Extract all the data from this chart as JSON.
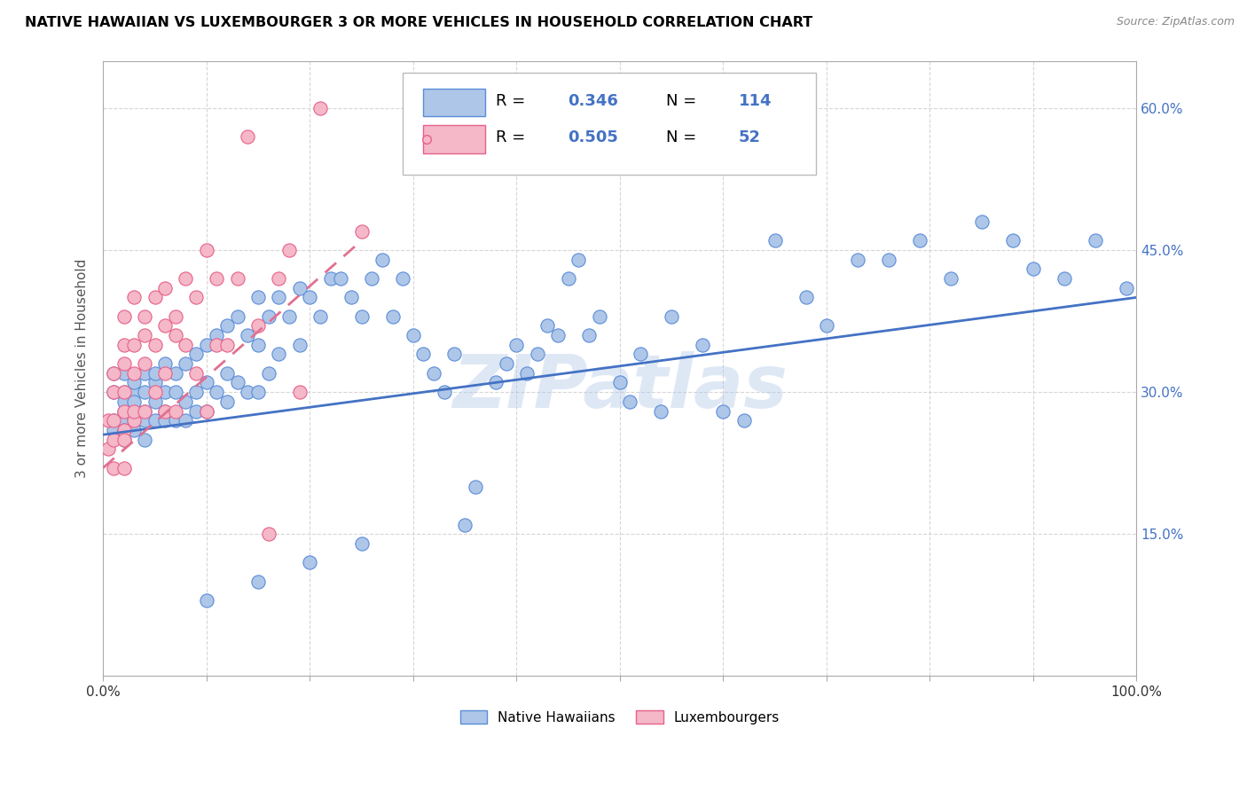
{
  "title": "NATIVE HAWAIIAN VS LUXEMBOURGER 3 OR MORE VEHICLES IN HOUSEHOLD CORRELATION CHART",
  "source": "Source: ZipAtlas.com",
  "ylabel": "3 or more Vehicles in Household",
  "xlim": [
    0,
    1.0
  ],
  "ylim": [
    0.0,
    0.65
  ],
  "R_blue": 0.346,
  "N_blue": 114,
  "R_pink": 0.505,
  "N_pink": 52,
  "legend_labels": [
    "Native Hawaiians",
    "Luxembourgers"
  ],
  "blue_color": "#aec6e8",
  "pink_color": "#f4b8c8",
  "blue_edge_color": "#5b8dd9",
  "pink_edge_color": "#e8608a",
  "blue_line_color": "#4472c4",
  "pink_line_color": "#e07090",
  "watermark": "ZIPatlas",
  "blue_line_x0": 0.0,
  "blue_line_y0": 0.255,
  "blue_line_x1": 1.0,
  "blue_line_y1": 0.4,
  "pink_line_x0": 0.0,
  "pink_line_y0": 0.22,
  "pink_line_x1": 0.25,
  "pink_line_y1": 0.46,
  "blue_scatter_x": [
    0.01,
    0.01,
    0.01,
    0.01,
    0.02,
    0.02,
    0.02,
    0.02,
    0.02,
    0.02,
    0.02,
    0.03,
    0.03,
    0.03,
    0.03,
    0.03,
    0.03,
    0.04,
    0.04,
    0.04,
    0.04,
    0.04,
    0.05,
    0.05,
    0.05,
    0.05,
    0.06,
    0.06,
    0.06,
    0.06,
    0.07,
    0.07,
    0.07,
    0.08,
    0.08,
    0.08,
    0.09,
    0.09,
    0.09,
    0.1,
    0.1,
    0.1,
    0.11,
    0.11,
    0.12,
    0.12,
    0.12,
    0.13,
    0.13,
    0.14,
    0.14,
    0.15,
    0.15,
    0.15,
    0.16,
    0.16,
    0.17,
    0.17,
    0.18,
    0.19,
    0.19,
    0.2,
    0.21,
    0.22,
    0.23,
    0.24,
    0.25,
    0.26,
    0.27,
    0.28,
    0.29,
    0.3,
    0.31,
    0.32,
    0.33,
    0.34,
    0.35,
    0.36,
    0.38,
    0.39,
    0.4,
    0.41,
    0.42,
    0.43,
    0.44,
    0.45,
    0.46,
    0.47,
    0.48,
    0.5,
    0.51,
    0.52,
    0.54,
    0.55,
    0.58,
    0.6,
    0.62,
    0.65,
    0.68,
    0.7,
    0.73,
    0.76,
    0.79,
    0.82,
    0.85,
    0.88,
    0.9,
    0.93,
    0.96,
    0.99,
    0.1,
    0.15,
    0.2,
    0.25
  ],
  "blue_scatter_y": [
    0.27,
    0.3,
    0.32,
    0.26,
    0.28,
    0.3,
    0.25,
    0.27,
    0.29,
    0.32,
    0.26,
    0.28,
    0.3,
    0.27,
    0.31,
    0.26,
    0.29,
    0.3,
    0.28,
    0.32,
    0.27,
    0.25,
    0.31,
    0.29,
    0.27,
    0.32,
    0.3,
    0.28,
    0.33,
    0.27,
    0.32,
    0.3,
    0.27,
    0.33,
    0.29,
    0.27,
    0.34,
    0.3,
    0.28,
    0.35,
    0.31,
    0.28,
    0.36,
    0.3,
    0.37,
    0.32,
    0.29,
    0.38,
    0.31,
    0.36,
    0.3,
    0.4,
    0.35,
    0.3,
    0.38,
    0.32,
    0.4,
    0.34,
    0.38,
    0.41,
    0.35,
    0.4,
    0.38,
    0.42,
    0.42,
    0.4,
    0.38,
    0.42,
    0.44,
    0.38,
    0.42,
    0.36,
    0.34,
    0.32,
    0.3,
    0.34,
    0.16,
    0.2,
    0.31,
    0.33,
    0.35,
    0.32,
    0.34,
    0.37,
    0.36,
    0.42,
    0.44,
    0.36,
    0.38,
    0.31,
    0.29,
    0.34,
    0.28,
    0.38,
    0.35,
    0.28,
    0.27,
    0.46,
    0.4,
    0.37,
    0.44,
    0.44,
    0.46,
    0.42,
    0.48,
    0.46,
    0.43,
    0.42,
    0.46,
    0.41,
    0.08,
    0.1,
    0.12,
    0.14
  ],
  "pink_scatter_x": [
    0.005,
    0.005,
    0.01,
    0.01,
    0.01,
    0.01,
    0.01,
    0.02,
    0.02,
    0.02,
    0.02,
    0.02,
    0.02,
    0.02,
    0.02,
    0.03,
    0.03,
    0.03,
    0.03,
    0.03,
    0.04,
    0.04,
    0.04,
    0.04,
    0.05,
    0.05,
    0.05,
    0.06,
    0.06,
    0.06,
    0.06,
    0.07,
    0.07,
    0.07,
    0.08,
    0.08,
    0.09,
    0.09,
    0.1,
    0.1,
    0.11,
    0.11,
    0.12,
    0.13,
    0.14,
    0.15,
    0.16,
    0.17,
    0.18,
    0.19,
    0.21,
    0.25
  ],
  "pink_scatter_y": [
    0.24,
    0.27,
    0.22,
    0.25,
    0.27,
    0.3,
    0.32,
    0.26,
    0.28,
    0.3,
    0.33,
    0.22,
    0.35,
    0.25,
    0.38,
    0.27,
    0.32,
    0.35,
    0.28,
    0.4,
    0.33,
    0.36,
    0.28,
    0.38,
    0.35,
    0.4,
    0.3,
    0.37,
    0.41,
    0.32,
    0.28,
    0.38,
    0.36,
    0.28,
    0.42,
    0.35,
    0.4,
    0.32,
    0.45,
    0.28,
    0.42,
    0.35,
    0.35,
    0.42,
    0.57,
    0.37,
    0.15,
    0.42,
    0.45,
    0.3,
    0.6,
    0.47
  ]
}
